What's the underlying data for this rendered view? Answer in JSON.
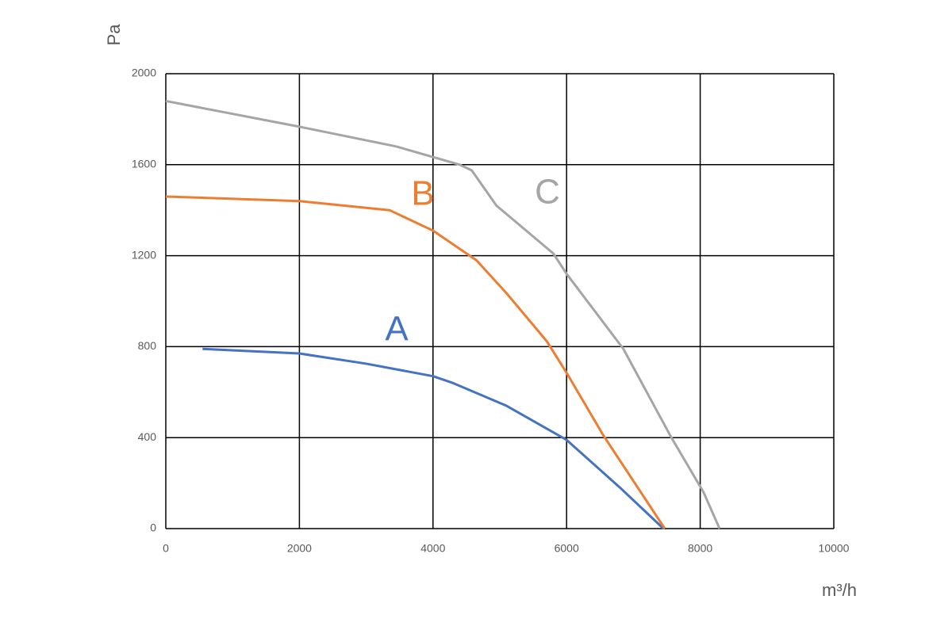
{
  "chart_data": {
    "type": "line",
    "x_label": "m³/h",
    "y_label": "Pa",
    "xlim": [
      0,
      10000
    ],
    "xticks": [
      0,
      2000,
      4000,
      6000,
      8000,
      10000
    ],
    "ylim": [
      0,
      2000
    ],
    "yticks": [
      0,
      400,
      800,
      1200,
      1600,
      2000
    ],
    "grid": true,
    "series": [
      {
        "name": "A",
        "color": "#4472c4",
        "x": [
          550,
          2000,
          3000,
          4000,
          4300,
          5100,
          6000,
          6800,
          7450
        ],
        "values": [
          790,
          770,
          725,
          670,
          640,
          540,
          390,
          180,
          0
        ]
      },
      {
        "name": "B",
        "color": "#ed7d31",
        "x": [
          0,
          2000,
          3350,
          4000,
          4650,
          5100,
          5700,
          6000,
          6550,
          7470
        ],
        "values": [
          1460,
          1440,
          1400,
          1310,
          1180,
          1035,
          825,
          685,
          410,
          0
        ]
      },
      {
        "name": "C",
        "color": "#a5a5a5",
        "x": [
          0,
          2000,
          3450,
          4400,
          4580,
          4950,
          5800,
          6000,
          6850,
          7550,
          8050,
          8290
        ],
        "values": [
          1880,
          1767,
          1680,
          1600,
          1575,
          1420,
          1210,
          1120,
          790,
          410,
          160,
          0
        ]
      }
    ]
  }
}
